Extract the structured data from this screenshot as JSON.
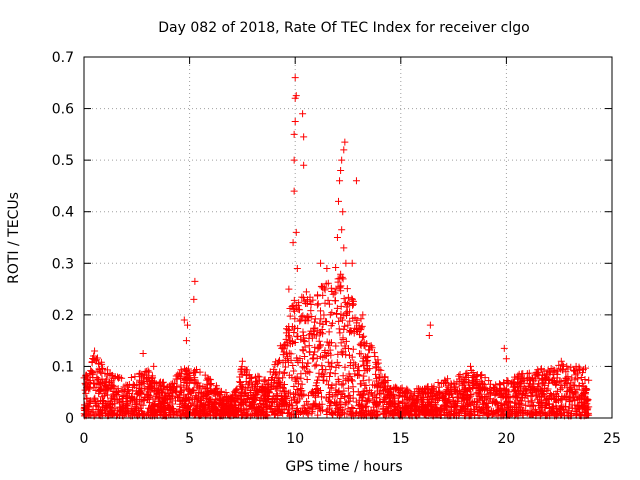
{
  "chart_data": {
    "type": "scatter",
    "title": "Day 082 of 2018, Rate Of TEC Index for receiver clgo",
    "xlabel": "GPS time / hours",
    "ylabel": "ROTI / TECUs",
    "xlim": [
      0,
      25
    ],
    "ylim": [
      0,
      0.7
    ],
    "xticks": [
      0,
      5,
      10,
      15,
      20,
      25
    ],
    "xtick_labels": [
      "0",
      "5",
      "10",
      "15",
      "20",
      "25"
    ],
    "yticks": [
      0,
      0.1,
      0.2,
      0.3,
      0.4,
      0.5,
      0.6,
      0.7
    ],
    "ytick_labels": [
      "0",
      "0.1",
      "0.2",
      "0.3",
      "0.4",
      "0.5",
      "0.6",
      "0.7"
    ],
    "grid": true,
    "marker": "+",
    "series_color": "#ff0000",
    "series": [
      {
        "name": "ROTI",
        "baseline_envelope": {
          "x": [
            0,
            0.5,
            1,
            2,
            3,
            4,
            4.8,
            5.5,
            6.5,
            7,
            7.5,
            8.5,
            9.3,
            9.8,
            10.3,
            11,
            12,
            13,
            13.8,
            14.5,
            15.5,
            16.5,
            17.5,
            18.5,
            19.5,
            20.5,
            21.5,
            22.5,
            23.5,
            23.9
          ],
          "upper": [
            0.08,
            0.12,
            0.1,
            0.07,
            0.09,
            0.06,
            0.1,
            0.09,
            0.05,
            0.04,
            0.1,
            0.07,
            0.12,
            0.22,
            0.25,
            0.24,
            0.3,
            0.2,
            0.12,
            0.06,
            0.05,
            0.06,
            0.08,
            0.09,
            0.06,
            0.08,
            0.09,
            0.1,
            0.1,
            0.09
          ]
        },
        "outliers": [
          {
            "x": 0.5,
            "y": 0.13
          },
          {
            "x": 2.8,
            "y": 0.125
          },
          {
            "x": 3.3,
            "y": 0.1
          },
          {
            "x": 4.75,
            "y": 0.19
          },
          {
            "x": 4.85,
            "y": 0.15
          },
          {
            "x": 4.9,
            "y": 0.18
          },
          {
            "x": 5.25,
            "y": 0.265
          },
          {
            "x": 5.2,
            "y": 0.23
          },
          {
            "x": 7.5,
            "y": 0.11
          },
          {
            "x": 9.3,
            "y": 0.14
          },
          {
            "x": 9.7,
            "y": 0.25
          },
          {
            "x": 9.9,
            "y": 0.34
          },
          {
            "x": 9.95,
            "y": 0.44
          },
          {
            "x": 9.95,
            "y": 0.5
          },
          {
            "x": 9.95,
            "y": 0.55
          },
          {
            "x": 10.0,
            "y": 0.575
          },
          {
            "x": 10.0,
            "y": 0.62
          },
          {
            "x": 10.05,
            "y": 0.625
          },
          {
            "x": 10.0,
            "y": 0.66
          },
          {
            "x": 10.05,
            "y": 0.36
          },
          {
            "x": 10.1,
            "y": 0.29
          },
          {
            "x": 10.35,
            "y": 0.59
          },
          {
            "x": 10.4,
            "y": 0.545
          },
          {
            "x": 10.4,
            "y": 0.49
          },
          {
            "x": 11.2,
            "y": 0.3
          },
          {
            "x": 11.5,
            "y": 0.29
          },
          {
            "x": 11.8,
            "y": 0.24
          },
          {
            "x": 12.0,
            "y": 0.35
          },
          {
            "x": 12.05,
            "y": 0.42
          },
          {
            "x": 12.1,
            "y": 0.46
          },
          {
            "x": 12.15,
            "y": 0.48
          },
          {
            "x": 12.2,
            "y": 0.5
          },
          {
            "x": 12.3,
            "y": 0.52
          },
          {
            "x": 12.35,
            "y": 0.535
          },
          {
            "x": 12.25,
            "y": 0.4
          },
          {
            "x": 12.2,
            "y": 0.365
          },
          {
            "x": 12.3,
            "y": 0.33
          },
          {
            "x": 12.4,
            "y": 0.3
          },
          {
            "x": 12.9,
            "y": 0.46
          },
          {
            "x": 12.7,
            "y": 0.3
          },
          {
            "x": 13.2,
            "y": 0.2
          },
          {
            "x": 13.6,
            "y": 0.14
          },
          {
            "x": 16.4,
            "y": 0.18
          },
          {
            "x": 16.35,
            "y": 0.16
          },
          {
            "x": 18.3,
            "y": 0.1
          },
          {
            "x": 19.9,
            "y": 0.135
          },
          {
            "x": 20.0,
            "y": 0.115
          },
          {
            "x": 22.6,
            "y": 0.11
          },
          {
            "x": 23.3,
            "y": 0.1
          }
        ]
      }
    ]
  }
}
